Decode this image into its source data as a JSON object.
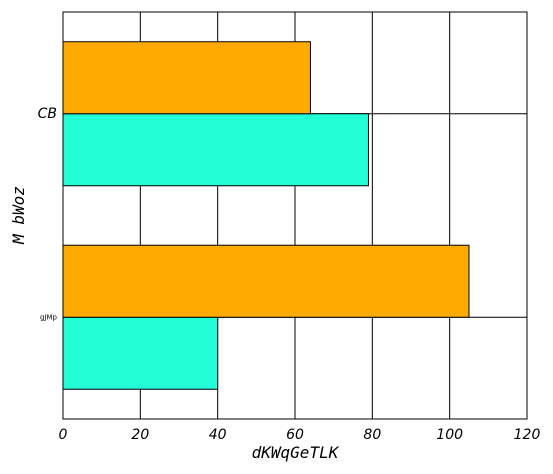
{
  "chart_data": {
    "type": "bar",
    "orientation": "horizontal",
    "categories": [
      "gJMp",
      "CB"
    ],
    "series": [
      {
        "values": [
          40,
          79
        ],
        "color": "#22ffd6"
      },
      {
        "values": [
          105,
          64
        ],
        "color": "#ffaa00"
      }
    ],
    "xlabel": "dKWqGeTLK",
    "ylabel": "M bWoz",
    "xlim": [
      0,
      120
    ],
    "xticks": [
      0,
      20,
      40,
      60,
      80,
      100,
      120
    ],
    "grid": true
  }
}
